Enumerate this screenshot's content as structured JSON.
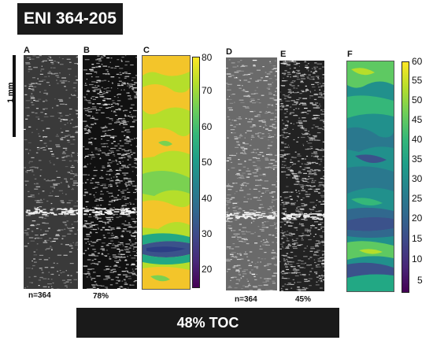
{
  "title": "ENI 364-205",
  "scale_label": "1 mm",
  "panels": {
    "A": {
      "letter": "A",
      "caption": "n=364"
    },
    "B": {
      "letter": "B",
      "caption": "78%"
    },
    "C": {
      "letter": "C",
      "colorbar_ticks": [
        "80",
        "70",
        "60",
        "50",
        "40",
        "30",
        "20"
      ]
    },
    "D": {
      "letter": "D",
      "caption": "n=364"
    },
    "E": {
      "letter": "E",
      "caption": "45%"
    },
    "F": {
      "letter": "F",
      "colorbar_ticks": [
        "60",
        "55",
        "50",
        "45",
        "40",
        "35",
        "30",
        "25",
        "20",
        "15",
        "10",
        "5"
      ]
    }
  },
  "footer": "48% TOC",
  "colors": {
    "dark": "#1a1a1a",
    "viridis_low": "#440154",
    "viridis_high": "#fde725"
  }
}
